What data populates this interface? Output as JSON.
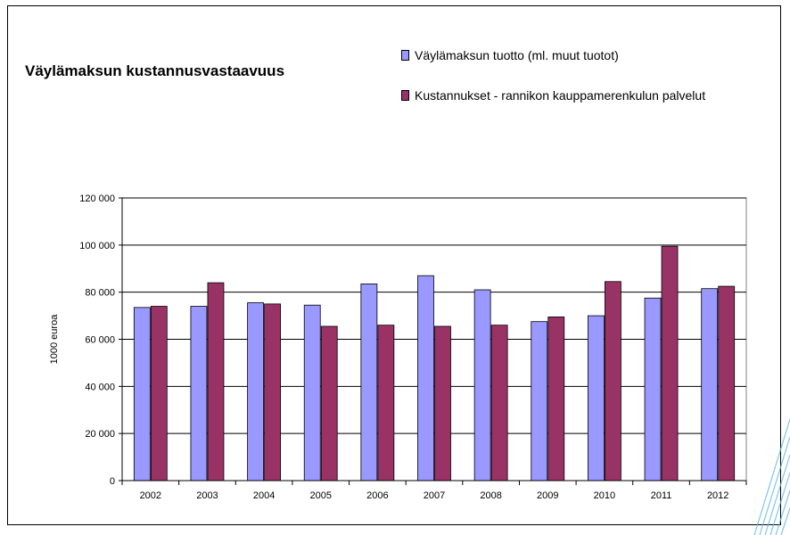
{
  "chart_data": {
    "type": "bar",
    "title": "Väylämaksun kustannusvastaavuus",
    "ylabel": "1000 euroa",
    "xlabel": "",
    "categories": [
      "2002",
      "2003",
      "2004",
      "2005",
      "2006",
      "2007",
      "2008",
      "2009",
      "2010",
      "2011",
      "2012"
    ],
    "series": [
      {
        "name": "Väylämaksun tuotto (ml. muut tuotot)",
        "color": "#9999ff",
        "values": [
          73500,
          74000,
          75500,
          74500,
          83500,
          87000,
          81000,
          67500,
          70000,
          77500,
          81500
        ]
      },
      {
        "name": "Kustannukset - rannikon kauppamerenkulun palvelut",
        "color": "#993366",
        "values": [
          74000,
          84000,
          75000,
          65500,
          66000,
          65500,
          66000,
          69500,
          84500,
          99500,
          82500
        ]
      }
    ],
    "ylim": [
      0,
      120000
    ],
    "yticks": [
      0,
      20000,
      40000,
      60000,
      80000,
      100000,
      120000
    ],
    "ytick_labels": [
      "0",
      "20 000",
      "40 000",
      "60 000",
      "80 000",
      "100 000",
      "120 000"
    ],
    "grid": true,
    "legend_position": "top-right"
  }
}
